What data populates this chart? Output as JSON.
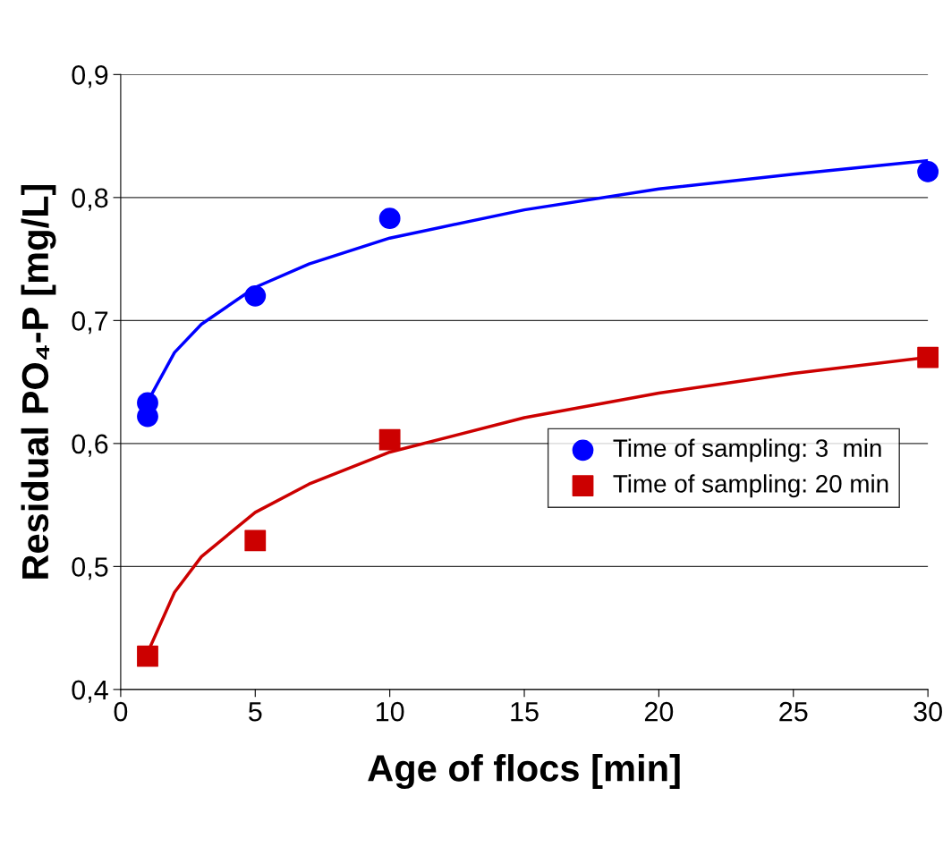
{
  "chart_data": {
    "type": "scatter",
    "xlabel": "Age of flocs [min]",
    "ylabel": "Residual PO₄-P [mg/L]",
    "xlim": [
      0,
      30
    ],
    "xticks": [
      0,
      5,
      10,
      15,
      20,
      25,
      30
    ],
    "ylim": [
      0.4,
      0.9
    ],
    "yticks": [
      {
        "value": 0.4,
        "label": "0,4"
      },
      {
        "value": 0.5,
        "label": "0,5"
      },
      {
        "value": 0.6,
        "label": "0,6"
      },
      {
        "value": 0.7,
        "label": "0,7"
      },
      {
        "value": 0.8,
        "label": "0,8"
      },
      {
        "value": 0.9,
        "label": "0,9"
      }
    ],
    "grid": "y",
    "legend": "center right",
    "series": [
      {
        "name": "Time of sampling: 3  min",
        "marker": "circle",
        "color": "#0000ff",
        "x": [
          1,
          1,
          5,
          10,
          30
        ],
        "values": [
          0.633,
          0.622,
          0.72,
          0.783,
          0.821
        ]
      },
      {
        "name": "Time of sampling: 20 min",
        "marker": "square",
        "color": "#cc0000",
        "x": [
          1,
          5,
          10,
          30
        ],
        "values": [
          0.427,
          0.521,
          0.603,
          0.67
        ]
      },
      {
        "type": "line",
        "marker": "none",
        "color": "#0000ff",
        "x": [
          1,
          2,
          3,
          5,
          7,
          10,
          15,
          20,
          25,
          30
        ],
        "values": [
          0.634,
          0.674,
          0.697,
          0.727,
          0.746,
          0.767,
          0.79,
          0.807,
          0.819,
          0.83
        ]
      },
      {
        "type": "line",
        "marker": "none",
        "color": "#cc0000",
        "x": [
          1,
          2,
          3,
          5,
          7,
          10,
          15,
          20,
          25,
          30
        ],
        "values": [
          0.43,
          0.479,
          0.508,
          0.544,
          0.567,
          0.593,
          0.621,
          0.641,
          0.657,
          0.67
        ]
      }
    ]
  }
}
